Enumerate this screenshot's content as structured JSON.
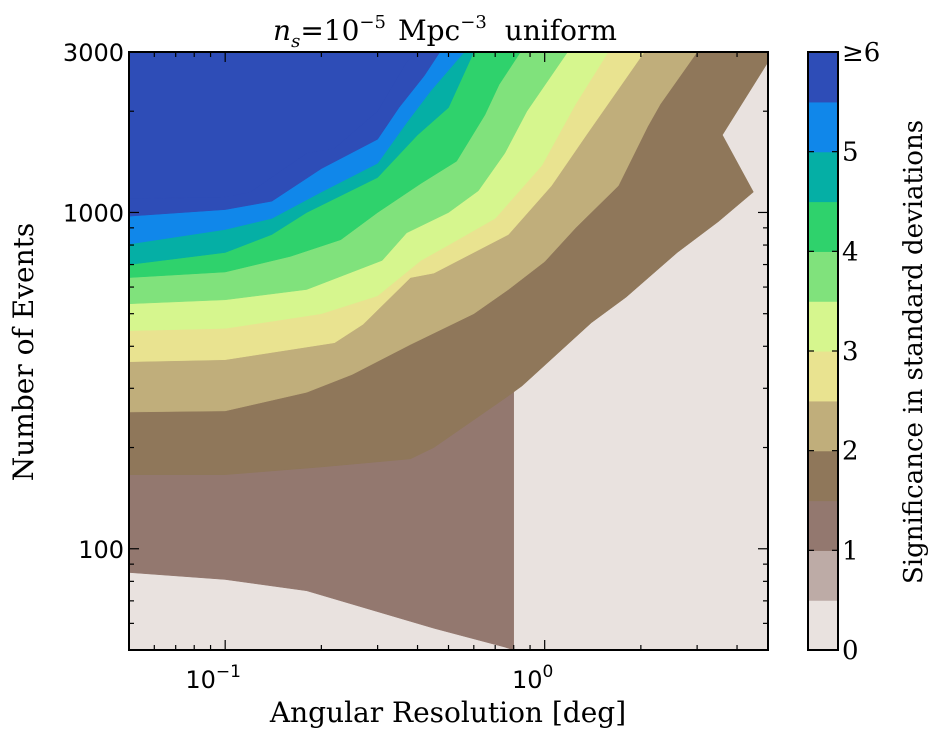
{
  "chart_data": {
    "type": "contour",
    "title": {
      "symbol": "n",
      "subscript": "s",
      "equals": "=10",
      "exponent": "−5",
      "unit": "Mpc",
      "unit_exponent": "−3",
      "mode": "uniform"
    },
    "xlabel": "Angular Resolution [deg]",
    "ylabel": "Number of Events",
    "x_scale": "log",
    "y_scale": "log",
    "xlim": [
      0.05,
      5.0
    ],
    "ylim": [
      50,
      3000
    ],
    "x_ticks": [
      {
        "value": 0.1,
        "base": "10",
        "exp": "−1"
      },
      {
        "value": 1.0,
        "base": "10",
        "exp": "0"
      }
    ],
    "y_ticks": [
      {
        "value": 100,
        "label": "100"
      },
      {
        "value": 1000,
        "label": "1000"
      },
      {
        "value": 3000,
        "label": "3000"
      }
    ],
    "colorbar": {
      "title": "Significance in standard deviations",
      "levels": [
        0,
        0.5,
        1,
        1.5,
        2,
        2.5,
        3,
        3.5,
        4,
        4.5,
        5,
        5.5,
        6
      ],
      "colors": [
        "#e9e2df",
        "#bdaba6",
        "#93786f",
        "#8f775a",
        "#c0ae7b",
        "#e9e390",
        "#d6f68e",
        "#80e27c",
        "#2fd26c",
        "#05afa5",
        "#1087ea",
        "#2e4db7"
      ],
      "tick_labels": [
        {
          "value": 0,
          "text": "0"
        },
        {
          "value": 1,
          "text": "1"
        },
        {
          "value": 2,
          "text": "2"
        },
        {
          "value": 3,
          "text": "3"
        },
        {
          "value": 4,
          "text": "4"
        },
        {
          "value": 5,
          "text": "5"
        },
        {
          "value": 6,
          "text": "≥6"
        }
      ]
    },
    "contours": [
      {
        "level": 1,
        "points": [
          [
            0.05,
            85
          ],
          [
            0.1,
            81
          ],
          [
            0.18,
            75
          ],
          [
            0.3,
            65
          ],
          [
            0.45,
            58
          ],
          [
            0.75,
            51
          ],
          [
            0.8,
            50
          ]
        ]
      },
      {
        "level": 1.5,
        "points": [
          [
            0.05,
            166
          ],
          [
            0.1,
            166
          ],
          [
            0.2,
            175
          ],
          [
            0.38,
            185
          ],
          [
            0.45,
            200
          ],
          [
            0.75,
            280
          ],
          [
            0.85,
            305
          ],
          [
            1.4,
            470
          ],
          [
            1.8,
            560
          ],
          [
            2.6,
            760
          ],
          [
            3.5,
            940
          ],
          [
            4.5,
            1150
          ],
          [
            3.6,
            1700
          ],
          [
            5.0,
            2800
          ]
        ]
      },
      {
        "level": 2,
        "points": [
          [
            0.05,
            255
          ],
          [
            0.1,
            257
          ],
          [
            0.18,
            292
          ],
          [
            0.25,
            330
          ],
          [
            0.38,
            405
          ],
          [
            0.6,
            500
          ],
          [
            0.77,
            590
          ],
          [
            1.0,
            715
          ],
          [
            1.25,
            900
          ],
          [
            1.7,
            1200
          ],
          [
            2.1,
            1800
          ],
          [
            2.3,
            2100
          ],
          [
            3.0,
            3000
          ]
        ]
      },
      {
        "level": 2.5,
        "points": [
          [
            0.05,
            360
          ],
          [
            0.1,
            365
          ],
          [
            0.22,
            410
          ],
          [
            0.27,
            465
          ],
          [
            0.38,
            640
          ],
          [
            0.45,
            660
          ],
          [
            0.77,
            860
          ],
          [
            1.05,
            1200
          ],
          [
            1.35,
            1700
          ],
          [
            2.05,
            3000
          ]
        ]
      },
      {
        "level": 3,
        "points": [
          [
            0.05,
            445
          ],
          [
            0.1,
            452
          ],
          [
            0.2,
            500
          ],
          [
            0.3,
            565
          ],
          [
            0.41,
            720
          ],
          [
            0.5,
            800
          ],
          [
            0.7,
            960
          ],
          [
            0.98,
            1380
          ],
          [
            1.25,
            2100
          ],
          [
            1.58,
            3000
          ]
        ]
      },
      {
        "level": 3.5,
        "points": [
          [
            0.05,
            535
          ],
          [
            0.1,
            550
          ],
          [
            0.18,
            590
          ],
          [
            0.31,
            720
          ],
          [
            0.37,
            870
          ],
          [
            0.5,
            1000
          ],
          [
            0.62,
            1160
          ],
          [
            0.75,
            1500
          ],
          [
            0.88,
            2000
          ],
          [
            1.18,
            3000
          ]
        ]
      },
      {
        "level": 4,
        "points": [
          [
            0.05,
            640
          ],
          [
            0.1,
            665
          ],
          [
            0.16,
            740
          ],
          [
            0.23,
            830
          ],
          [
            0.3,
            1000
          ],
          [
            0.41,
            1220
          ],
          [
            0.53,
            1420
          ],
          [
            0.65,
            1950
          ],
          [
            0.72,
            2400
          ],
          [
            0.84,
            3000
          ]
        ]
      },
      {
        "level": 4.5,
        "points": [
          [
            0.05,
            700
          ],
          [
            0.1,
            760
          ],
          [
            0.14,
            860
          ],
          [
            0.18,
            1000
          ],
          [
            0.3,
            1270
          ],
          [
            0.4,
            1700
          ],
          [
            0.5,
            2050
          ],
          [
            0.6,
            3000
          ]
        ]
      },
      {
        "level": 5,
        "points": [
          [
            0.05,
            805
          ],
          [
            0.1,
            890
          ],
          [
            0.14,
            960
          ],
          [
            0.2,
            1150
          ],
          [
            0.3,
            1400
          ],
          [
            0.37,
            1850
          ],
          [
            0.44,
            2300
          ],
          [
            0.56,
            3000
          ]
        ]
      },
      {
        "level": 5.5,
        "points": [
          [
            0.05,
            975
          ],
          [
            0.1,
            1020
          ],
          [
            0.14,
            1080
          ],
          [
            0.2,
            1350
          ],
          [
            0.3,
            1650
          ],
          [
            0.35,
            2050
          ],
          [
            0.42,
            2550
          ],
          [
            0.47,
            3000
          ]
        ]
      },
      {
        "level": 6,
        "points": [
          [
            0.05,
            1100
          ],
          [
            0.1,
            1110
          ],
          [
            0.12,
            1150
          ],
          [
            0.18,
            1500
          ],
          [
            0.22,
            1550
          ],
          [
            0.3,
            2000
          ],
          [
            0.37,
            2800
          ],
          [
            0.4,
            3000
          ]
        ]
      }
    ]
  }
}
